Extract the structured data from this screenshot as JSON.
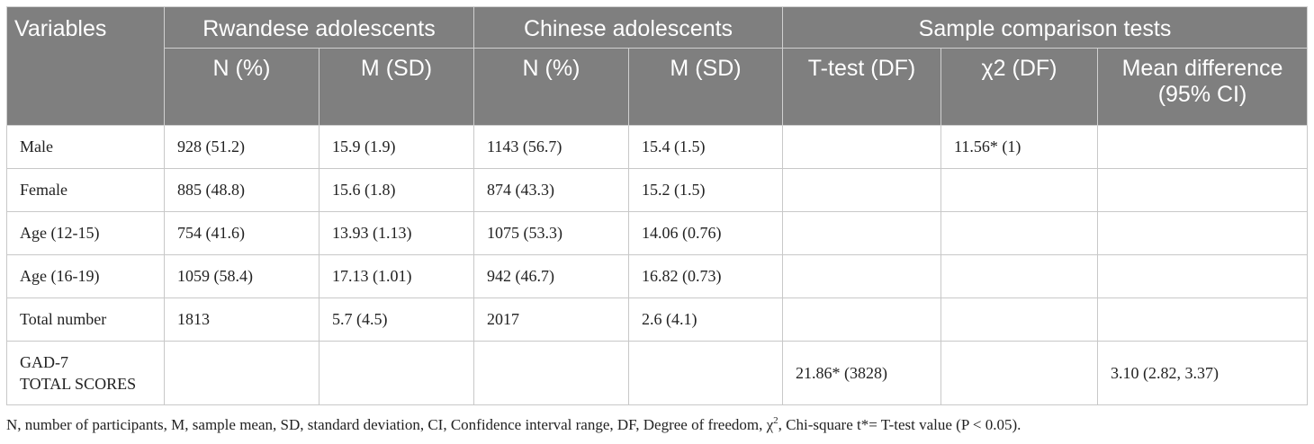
{
  "table": {
    "group_headers": {
      "variables": "Variables",
      "rwandese": "Rwandese adolescents",
      "chinese": "Chinese adolescents",
      "comparison": "Sample comparison tests"
    },
    "sub_headers": {
      "rw_n": "N (%)",
      "rw_m": "M (SD)",
      "cn_n": "N (%)",
      "cn_m": "M (SD)",
      "ttest": "T-test (DF)",
      "chi2": "χ2 (DF)",
      "mean_diff": "Mean difference (95% CI)"
    },
    "rows": [
      {
        "label": "Male",
        "rw_n": "928 (51.2)",
        "rw_m": "15.9 (1.9)",
        "cn_n": "1143 (56.7)",
        "cn_m": "15.4 (1.5)",
        "ttest": "",
        "chi2": "11.56* (1)",
        "mean_diff": ""
      },
      {
        "label": "Female",
        "rw_n": "885 (48.8)",
        "rw_m": "15.6 (1.8)",
        "cn_n": "874 (43.3)",
        "cn_m": "15.2 (1.5)",
        "ttest": "",
        "chi2": "",
        "mean_diff": ""
      },
      {
        "label": "Age (12-15)",
        "rw_n": "754 (41.6)",
        "rw_m": "13.93 (1.13)",
        "cn_n": "1075 (53.3)",
        "cn_m": "14.06 (0.76)",
        "ttest": "",
        "chi2": "",
        "mean_diff": ""
      },
      {
        "label": "Age (16-19)",
        "rw_n": "1059 (58.4)",
        "rw_m": "17.13 (1.01)",
        "cn_n": "942 (46.7)",
        "cn_m": "16.82 (0.73)",
        "ttest": "",
        "chi2": "",
        "mean_diff": ""
      },
      {
        "label": "Total number",
        "rw_n": "1813",
        "rw_m": "5.7 (4.5)",
        "cn_n": "2017",
        "cn_m": "2.6 (4.1)",
        "ttest": "",
        "chi2": "",
        "mean_diff": ""
      }
    ],
    "gad_row": {
      "label_line1": "GAD-7",
      "label_line2": "TOTAL SCORES",
      "rw_n": "",
      "rw_m": "",
      "cn_n": "",
      "cn_m": "",
      "ttest": "21.86* (3828)",
      "chi2": "",
      "mean_diff": "3.10 (2.82, 3.37)"
    }
  },
  "footnote": {
    "before_sup": "N, number of participants, M, sample mean, SD, standard deviation, CI, Confidence interval range, DF, Degree of freedom, χ",
    "sup": "2",
    "after_sup": ", Chi-square t*= T-test value (P < 0.05)."
  }
}
